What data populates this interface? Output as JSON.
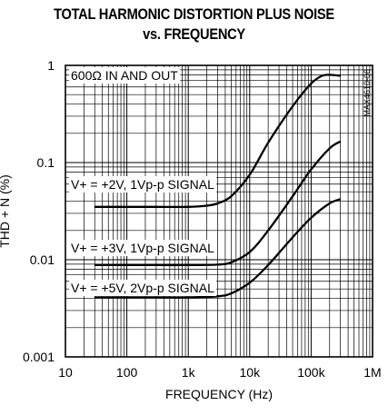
{
  "chart_data": {
    "type": "line",
    "title": "TOTAL HARMONIC DISTORTION PLUS NOISE",
    "subtitle": "vs. FREQUENCY",
    "xlabel": "FREQUENCY (Hz)",
    "ylabel": "THD + N (%)",
    "x_scale": "log",
    "y_scale": "log",
    "xlim": [
      10,
      1000000
    ],
    "ylim": [
      0.001,
      1
    ],
    "x_ticks": [
      "10",
      "100",
      "1k",
      "10k",
      "100k",
      "1M"
    ],
    "y_ticks": [
      "1",
      "0.1",
      "0.01",
      "0.001"
    ],
    "grid": true,
    "part_number": "MAX4610-08",
    "annotations": [
      "600Ω IN AND OUT"
    ],
    "series": [
      {
        "name": "V+ = +2V, 1Vp-p SIGNAL",
        "x": [
          30,
          100,
          300,
          1000,
          2000,
          3000,
          5000,
          10000,
          20000,
          50000,
          100000,
          150000,
          200000,
          300000
        ],
        "y": [
          0.035,
          0.035,
          0.035,
          0.035,
          0.036,
          0.038,
          0.045,
          0.075,
          0.16,
          0.38,
          0.65,
          0.78,
          0.8,
          0.78
        ]
      },
      {
        "name": "V+ = +3V, 1Vp-p SIGNAL",
        "x": [
          30,
          100,
          300,
          1000,
          3000,
          5000,
          10000,
          20000,
          50000,
          100000,
          200000,
          300000
        ],
        "y": [
          0.0088,
          0.0088,
          0.0088,
          0.0088,
          0.0089,
          0.0094,
          0.012,
          0.02,
          0.045,
          0.085,
          0.14,
          0.165
        ]
      },
      {
        "name": "V+ = +5V, 2Vp-p SIGNAL",
        "x": [
          30,
          100,
          300,
          1000,
          3000,
          5000,
          10000,
          20000,
          50000,
          100000,
          200000,
          300000
        ],
        "y": [
          0.0041,
          0.0041,
          0.0041,
          0.0041,
          0.0042,
          0.0045,
          0.0058,
          0.0088,
          0.017,
          0.027,
          0.038,
          0.042
        ]
      }
    ]
  }
}
